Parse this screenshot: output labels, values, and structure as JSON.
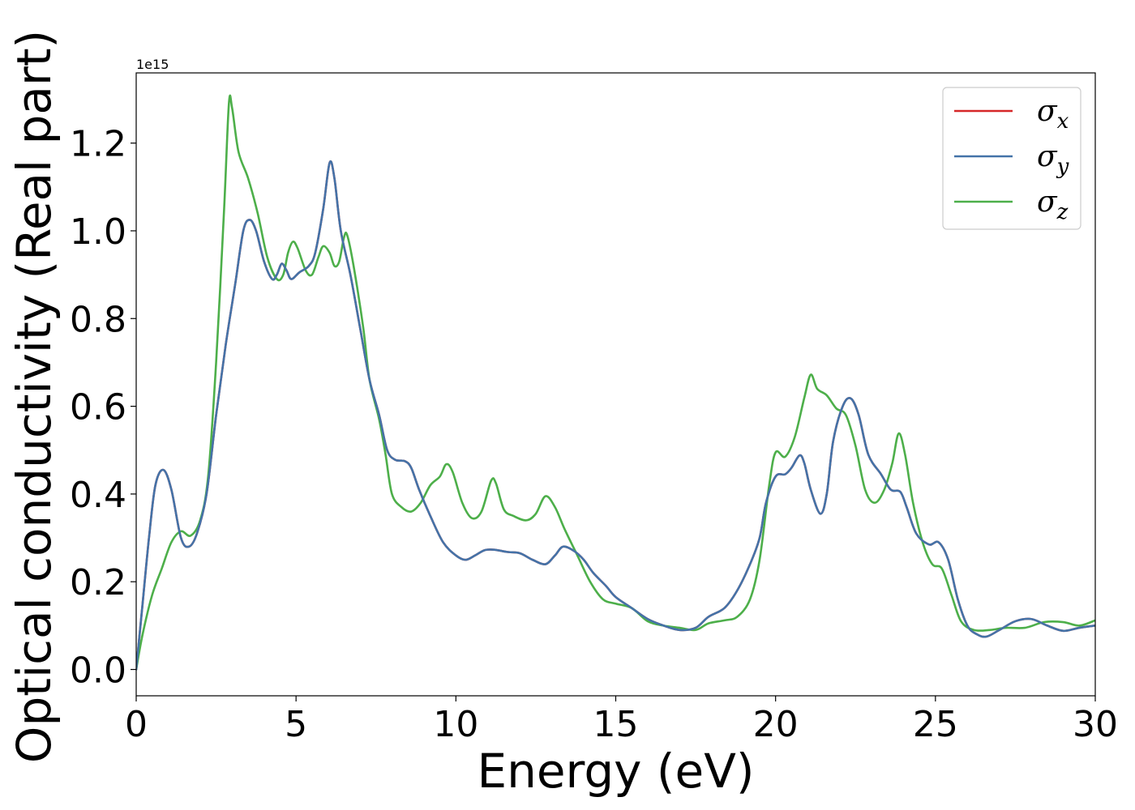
{
  "chart_data": {
    "type": "line",
    "title": "",
    "xlabel": "Energy (eV)",
    "ylabel": "Optical conductivity (Real part)",
    "y_offset_label": "1e15",
    "xlim": [
      0,
      30
    ],
    "ylim": [
      -0.06,
      1.36
    ],
    "x_ticks": [
      0,
      5,
      10,
      15,
      20,
      25,
      30
    ],
    "x_tick_labels": [
      "0",
      "5",
      "10",
      "15",
      "20",
      "25",
      "30"
    ],
    "y_ticks": [
      0.0,
      0.2,
      0.4,
      0.6,
      0.8,
      1.0,
      1.2
    ],
    "y_tick_labels": [
      "0.0",
      "0.2",
      "0.4",
      "0.6",
      "0.8",
      "1.0",
      "1.2"
    ],
    "grid": false,
    "legend_position": "top-right",
    "series": [
      {
        "name": "σx",
        "legend_symbol": "σ",
        "legend_subscript": "x",
        "color": "#d62728",
        "points": [
          [
            0,
            0.0
          ],
          [
            0.2,
            0.15
          ],
          [
            0.4,
            0.3
          ],
          [
            0.6,
            0.42
          ],
          [
            0.85,
            0.455
          ],
          [
            1.1,
            0.41
          ],
          [
            1.4,
            0.3
          ],
          [
            1.65,
            0.28
          ],
          [
            1.9,
            0.31
          ],
          [
            2.2,
            0.4
          ],
          [
            2.5,
            0.58
          ],
          [
            2.8,
            0.74
          ],
          [
            3.1,
            0.88
          ],
          [
            3.35,
            1.0
          ],
          [
            3.55,
            1.025
          ],
          [
            3.75,
            1.0
          ],
          [
            4.0,
            0.93
          ],
          [
            4.25,
            0.89
          ],
          [
            4.4,
            0.9
          ],
          [
            4.55,
            0.925
          ],
          [
            4.7,
            0.91
          ],
          [
            4.85,
            0.89
          ],
          [
            5.1,
            0.905
          ],
          [
            5.4,
            0.92
          ],
          [
            5.6,
            0.95
          ],
          [
            5.85,
            1.05
          ],
          [
            6.05,
            1.155
          ],
          [
            6.2,
            1.12
          ],
          [
            6.4,
            1.0
          ],
          [
            6.7,
            0.9
          ],
          [
            7.0,
            0.78
          ],
          [
            7.3,
            0.66
          ],
          [
            7.6,
            0.58
          ],
          [
            7.85,
            0.5
          ],
          [
            8.1,
            0.478
          ],
          [
            8.4,
            0.475
          ],
          [
            8.6,
            0.46
          ],
          [
            8.85,
            0.41
          ],
          [
            9.2,
            0.35
          ],
          [
            9.6,
            0.29
          ],
          [
            10.0,
            0.26
          ],
          [
            10.3,
            0.25
          ],
          [
            10.6,
            0.26
          ],
          [
            10.9,
            0.272
          ],
          [
            11.2,
            0.273
          ],
          [
            11.6,
            0.268
          ],
          [
            12.0,
            0.265
          ],
          [
            12.4,
            0.25
          ],
          [
            12.8,
            0.24
          ],
          [
            13.1,
            0.26
          ],
          [
            13.35,
            0.28
          ],
          [
            13.7,
            0.27
          ],
          [
            14.0,
            0.25
          ],
          [
            14.3,
            0.22
          ],
          [
            14.7,
            0.19
          ],
          [
            15.0,
            0.165
          ],
          [
            15.5,
            0.14
          ],
          [
            16.0,
            0.115
          ],
          [
            16.5,
            0.1
          ],
          [
            17.0,
            0.09
          ],
          [
            17.5,
            0.095
          ],
          [
            17.9,
            0.12
          ],
          [
            18.4,
            0.14
          ],
          [
            18.8,
            0.18
          ],
          [
            19.2,
            0.24
          ],
          [
            19.5,
            0.3
          ],
          [
            19.7,
            0.38
          ],
          [
            20.0,
            0.44
          ],
          [
            20.3,
            0.445
          ],
          [
            20.5,
            0.46
          ],
          [
            20.75,
            0.488
          ],
          [
            20.9,
            0.47
          ],
          [
            21.1,
            0.41
          ],
          [
            21.4,
            0.355
          ],
          [
            21.6,
            0.4
          ],
          [
            21.8,
            0.52
          ],
          [
            22.1,
            0.6
          ],
          [
            22.35,
            0.618
          ],
          [
            22.6,
            0.58
          ],
          [
            22.9,
            0.49
          ],
          [
            23.3,
            0.445
          ],
          [
            23.6,
            0.41
          ],
          [
            23.9,
            0.405
          ],
          [
            24.1,
            0.37
          ],
          [
            24.4,
            0.31
          ],
          [
            24.8,
            0.285
          ],
          [
            25.1,
            0.29
          ],
          [
            25.4,
            0.25
          ],
          [
            25.7,
            0.16
          ],
          [
            26.0,
            0.1
          ],
          [
            26.3,
            0.08
          ],
          [
            26.6,
            0.075
          ],
          [
            27.0,
            0.09
          ],
          [
            27.5,
            0.11
          ],
          [
            28.0,
            0.115
          ],
          [
            28.5,
            0.1
          ],
          [
            29.0,
            0.088
          ],
          [
            29.5,
            0.095
          ],
          [
            30.0,
            0.1
          ]
        ]
      },
      {
        "name": "σy",
        "legend_symbol": "σ",
        "legend_subscript": "y",
        "color": "#4473a8",
        "points": [
          [
            0,
            0.0
          ],
          [
            0.2,
            0.15
          ],
          [
            0.4,
            0.3
          ],
          [
            0.6,
            0.42
          ],
          [
            0.85,
            0.455
          ],
          [
            1.1,
            0.41
          ],
          [
            1.4,
            0.3
          ],
          [
            1.65,
            0.28
          ],
          [
            1.9,
            0.31
          ],
          [
            2.2,
            0.4
          ],
          [
            2.5,
            0.58
          ],
          [
            2.8,
            0.74
          ],
          [
            3.1,
            0.88
          ],
          [
            3.35,
            1.0
          ],
          [
            3.55,
            1.025
          ],
          [
            3.75,
            1.0
          ],
          [
            4.0,
            0.93
          ],
          [
            4.25,
            0.89
          ],
          [
            4.4,
            0.9
          ],
          [
            4.55,
            0.925
          ],
          [
            4.7,
            0.91
          ],
          [
            4.85,
            0.89
          ],
          [
            5.1,
            0.905
          ],
          [
            5.4,
            0.92
          ],
          [
            5.6,
            0.95
          ],
          [
            5.85,
            1.05
          ],
          [
            6.05,
            1.155
          ],
          [
            6.2,
            1.12
          ],
          [
            6.4,
            1.0
          ],
          [
            6.7,
            0.9
          ],
          [
            7.0,
            0.78
          ],
          [
            7.3,
            0.66
          ],
          [
            7.6,
            0.58
          ],
          [
            7.85,
            0.5
          ],
          [
            8.1,
            0.478
          ],
          [
            8.4,
            0.475
          ],
          [
            8.6,
            0.46
          ],
          [
            8.85,
            0.41
          ],
          [
            9.2,
            0.35
          ],
          [
            9.6,
            0.29
          ],
          [
            10.0,
            0.26
          ],
          [
            10.3,
            0.25
          ],
          [
            10.6,
            0.26
          ],
          [
            10.9,
            0.272
          ],
          [
            11.2,
            0.273
          ],
          [
            11.6,
            0.268
          ],
          [
            12.0,
            0.265
          ],
          [
            12.4,
            0.25
          ],
          [
            12.8,
            0.24
          ],
          [
            13.1,
            0.26
          ],
          [
            13.35,
            0.28
          ],
          [
            13.7,
            0.27
          ],
          [
            14.0,
            0.25
          ],
          [
            14.3,
            0.22
          ],
          [
            14.7,
            0.19
          ],
          [
            15.0,
            0.165
          ],
          [
            15.5,
            0.14
          ],
          [
            16.0,
            0.115
          ],
          [
            16.5,
            0.1
          ],
          [
            17.0,
            0.09
          ],
          [
            17.5,
            0.095
          ],
          [
            17.9,
            0.12
          ],
          [
            18.4,
            0.14
          ],
          [
            18.8,
            0.18
          ],
          [
            19.2,
            0.24
          ],
          [
            19.5,
            0.3
          ],
          [
            19.7,
            0.38
          ],
          [
            20.0,
            0.44
          ],
          [
            20.3,
            0.445
          ],
          [
            20.5,
            0.46
          ],
          [
            20.75,
            0.488
          ],
          [
            20.9,
            0.47
          ],
          [
            21.1,
            0.41
          ],
          [
            21.4,
            0.355
          ],
          [
            21.6,
            0.4
          ],
          [
            21.8,
            0.52
          ],
          [
            22.1,
            0.6
          ],
          [
            22.35,
            0.618
          ],
          [
            22.6,
            0.58
          ],
          [
            22.9,
            0.49
          ],
          [
            23.3,
            0.445
          ],
          [
            23.6,
            0.41
          ],
          [
            23.9,
            0.405
          ],
          [
            24.1,
            0.37
          ],
          [
            24.4,
            0.31
          ],
          [
            24.8,
            0.285
          ],
          [
            25.1,
            0.29
          ],
          [
            25.4,
            0.25
          ],
          [
            25.7,
            0.16
          ],
          [
            26.0,
            0.1
          ],
          [
            26.3,
            0.08
          ],
          [
            26.6,
            0.075
          ],
          [
            27.0,
            0.09
          ],
          [
            27.5,
            0.11
          ],
          [
            28.0,
            0.115
          ],
          [
            28.5,
            0.1
          ],
          [
            29.0,
            0.088
          ],
          [
            29.5,
            0.095
          ],
          [
            30.0,
            0.1
          ]
        ]
      },
      {
        "name": "σz",
        "legend_symbol": "σ",
        "legend_subscript": "z",
        "color": "#4daf4a",
        "points": [
          [
            0,
            0.0
          ],
          [
            0.2,
            0.08
          ],
          [
            0.5,
            0.17
          ],
          [
            0.8,
            0.23
          ],
          [
            1.1,
            0.29
          ],
          [
            1.4,
            0.315
          ],
          [
            1.7,
            0.305
          ],
          [
            2.0,
            0.34
          ],
          [
            2.25,
            0.44
          ],
          [
            2.5,
            0.7
          ],
          [
            2.75,
            1.05
          ],
          [
            2.9,
            1.29
          ],
          [
            3.0,
            1.28
          ],
          [
            3.2,
            1.18
          ],
          [
            3.5,
            1.12
          ],
          [
            3.8,
            1.04
          ],
          [
            4.1,
            0.94
          ],
          [
            4.4,
            0.89
          ],
          [
            4.6,
            0.9
          ],
          [
            4.75,
            0.95
          ],
          [
            4.9,
            0.975
          ],
          [
            5.05,
            0.96
          ],
          [
            5.3,
            0.91
          ],
          [
            5.5,
            0.9
          ],
          [
            5.7,
            0.94
          ],
          [
            5.85,
            0.965
          ],
          [
            6.05,
            0.95
          ],
          [
            6.2,
            0.92
          ],
          [
            6.35,
            0.93
          ],
          [
            6.5,
            0.985
          ],
          [
            6.6,
            0.99
          ],
          [
            6.8,
            0.92
          ],
          [
            7.1,
            0.78
          ],
          [
            7.3,
            0.66
          ],
          [
            7.6,
            0.57
          ],
          [
            7.8,
            0.49
          ],
          [
            8.0,
            0.4
          ],
          [
            8.3,
            0.37
          ],
          [
            8.6,
            0.36
          ],
          [
            8.9,
            0.38
          ],
          [
            9.2,
            0.42
          ],
          [
            9.5,
            0.44
          ],
          [
            9.7,
            0.468
          ],
          [
            9.9,
            0.45
          ],
          [
            10.2,
            0.38
          ],
          [
            10.5,
            0.345
          ],
          [
            10.8,
            0.36
          ],
          [
            11.1,
            0.43
          ],
          [
            11.25,
            0.425
          ],
          [
            11.5,
            0.365
          ],
          [
            11.8,
            0.35
          ],
          [
            12.2,
            0.34
          ],
          [
            12.5,
            0.355
          ],
          [
            12.8,
            0.395
          ],
          [
            13.1,
            0.37
          ],
          [
            13.4,
            0.32
          ],
          [
            13.8,
            0.26
          ],
          [
            14.2,
            0.2
          ],
          [
            14.6,
            0.16
          ],
          [
            15.0,
            0.15
          ],
          [
            15.5,
            0.14
          ],
          [
            16.0,
            0.11
          ],
          [
            16.5,
            0.1
          ],
          [
            17.0,
            0.095
          ],
          [
            17.5,
            0.09
          ],
          [
            17.9,
            0.105
          ],
          [
            18.4,
            0.112
          ],
          [
            18.8,
            0.12
          ],
          [
            19.2,
            0.16
          ],
          [
            19.5,
            0.25
          ],
          [
            19.8,
            0.42
          ],
          [
            20.0,
            0.495
          ],
          [
            20.3,
            0.485
          ],
          [
            20.6,
            0.53
          ],
          [
            20.9,
            0.62
          ],
          [
            21.1,
            0.672
          ],
          [
            21.3,
            0.64
          ],
          [
            21.6,
            0.625
          ],
          [
            21.9,
            0.595
          ],
          [
            22.2,
            0.58
          ],
          [
            22.5,
            0.51
          ],
          [
            22.8,
            0.41
          ],
          [
            23.1,
            0.38
          ],
          [
            23.4,
            0.41
          ],
          [
            23.65,
            0.47
          ],
          [
            23.85,
            0.538
          ],
          [
            24.05,
            0.49
          ],
          [
            24.3,
            0.38
          ],
          [
            24.6,
            0.29
          ],
          [
            24.9,
            0.24
          ],
          [
            25.2,
            0.23
          ],
          [
            25.5,
            0.17
          ],
          [
            25.8,
            0.11
          ],
          [
            26.2,
            0.09
          ],
          [
            26.7,
            0.09
          ],
          [
            27.2,
            0.095
          ],
          [
            27.8,
            0.095
          ],
          [
            28.4,
            0.108
          ],
          [
            29.0,
            0.108
          ],
          [
            29.5,
            0.1
          ],
          [
            30.0,
            0.112
          ]
        ]
      }
    ]
  }
}
